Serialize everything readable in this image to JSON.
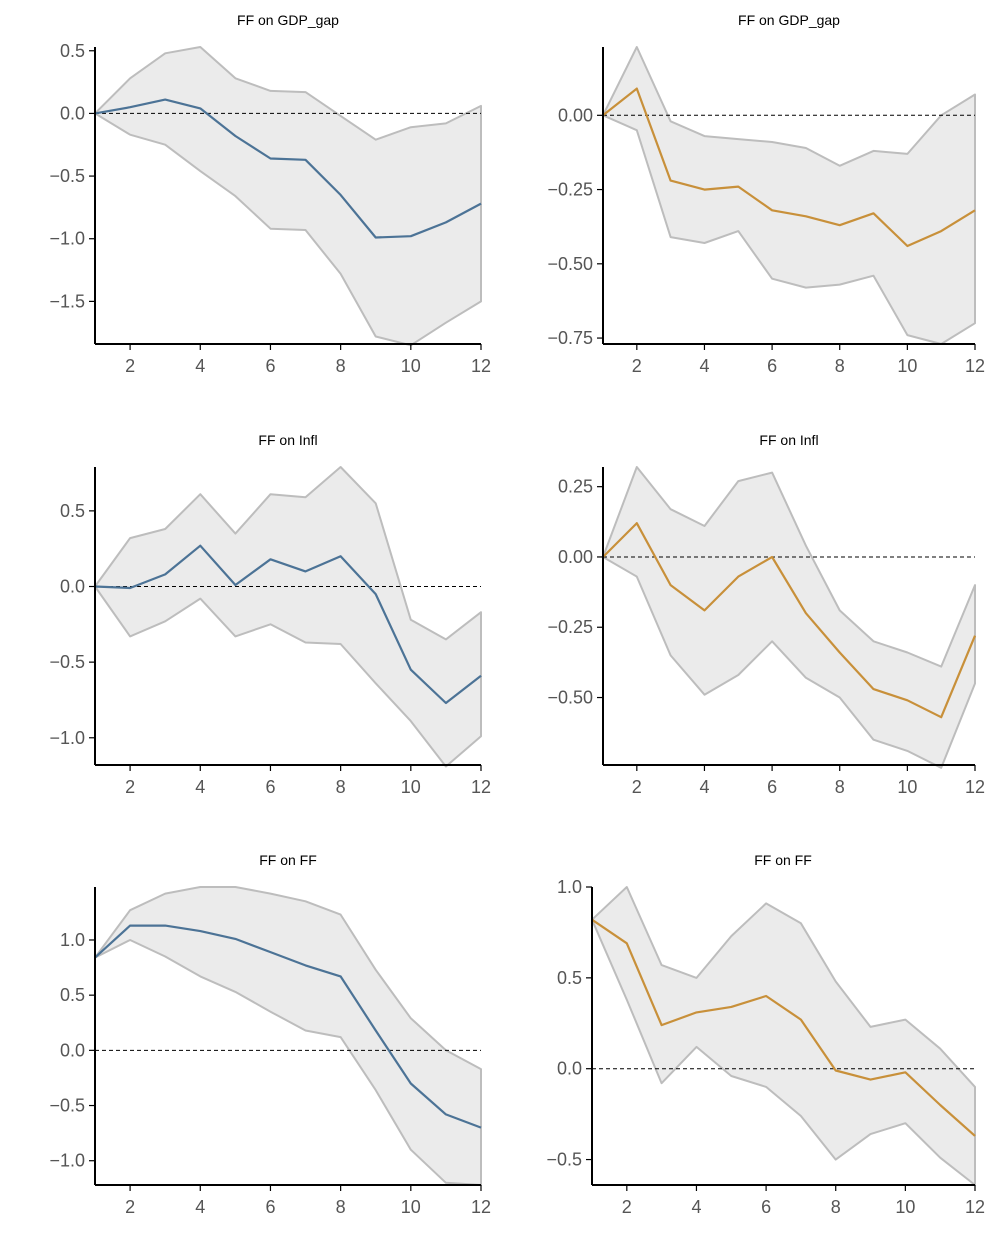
{
  "figure": {
    "background": "#ffffff"
  },
  "colors": {
    "left_series": "#4c7396",
    "right_series": "#c8903a",
    "band_fill": "#ebebeb",
    "band_edge": "#bdbdbd"
  },
  "chart_data": [
    {
      "type": "line",
      "title": "FF on GDP_gap",
      "x": [
        1,
        2,
        3,
        4,
        5,
        6,
        7,
        8,
        9,
        10,
        11,
        12
      ],
      "xticks": [
        2,
        4,
        6,
        8,
        10,
        12
      ],
      "xlim": [
        1,
        12
      ],
      "ylim": [
        -1.84,
        0.53
      ],
      "yticks": [
        0.5,
        0.0,
        -0.5,
        -1.0,
        -1.5
      ],
      "yticklabels": [
        "0.5",
        "0.0",
        "−0.5",
        "−1.0",
        "−1.5"
      ],
      "zero_line": true,
      "series": [
        {
          "role": "lower",
          "values": [
            0.0,
            -0.17,
            -0.25,
            -0.46,
            -0.66,
            -0.92,
            -0.93,
            -1.28,
            -1.78,
            -1.85,
            -1.67,
            -1.5
          ]
        },
        {
          "role": "upper",
          "values": [
            0.0,
            0.28,
            0.48,
            0.53,
            0.28,
            0.18,
            0.17,
            -0.02,
            -0.21,
            -0.11,
            -0.08,
            0.06
          ]
        },
        {
          "role": "point",
          "color": "#4c7396",
          "values": [
            0.0,
            0.05,
            0.11,
            0.04,
            -0.18,
            -0.36,
            -0.37,
            -0.65,
            -0.99,
            -0.98,
            -0.87,
            -0.72
          ]
        }
      ]
    },
    {
      "type": "line",
      "title": "FF on GDP_gap",
      "x": [
        1,
        2,
        3,
        4,
        5,
        6,
        7,
        8,
        9,
        10,
        11,
        12
      ],
      "xticks": [
        2,
        4,
        6,
        8,
        10,
        12
      ],
      "xlim": [
        1,
        12
      ],
      "ylim": [
        -0.77,
        0.23
      ],
      "yticks": [
        0.0,
        -0.25,
        -0.5,
        -0.75
      ],
      "yticklabels": [
        "0.00",
        "−0.25",
        "−0.50",
        "−0.75"
      ],
      "zero_line": true,
      "series": [
        {
          "role": "lower",
          "values": [
            0.0,
            -0.05,
            -0.41,
            -0.43,
            -0.39,
            -0.55,
            -0.58,
            -0.57,
            -0.54,
            -0.74,
            -0.77,
            -0.7
          ]
        },
        {
          "role": "upper",
          "values": [
            0.0,
            0.23,
            -0.02,
            -0.07,
            -0.08,
            -0.09,
            -0.11,
            -0.17,
            -0.12,
            -0.13,
            0.0,
            0.07
          ]
        },
        {
          "role": "point",
          "color": "#c8903a",
          "values": [
            0.0,
            0.09,
            -0.22,
            -0.25,
            -0.24,
            -0.32,
            -0.34,
            -0.37,
            -0.33,
            -0.44,
            -0.39,
            -0.32
          ]
        }
      ]
    },
    {
      "type": "line",
      "title": "FF on Infl",
      "x": [
        1,
        2,
        3,
        4,
        5,
        6,
        7,
        8,
        9,
        10,
        11,
        12
      ],
      "xticks": [
        2,
        4,
        6,
        8,
        10,
        12
      ],
      "xlim": [
        1,
        12
      ],
      "ylim": [
        -1.18,
        0.79
      ],
      "yticks": [
        0.5,
        0.0,
        -0.5,
        -1.0
      ],
      "yticklabels": [
        "0.5",
        "0.0",
        "−0.5",
        "−1.0"
      ],
      "zero_line": true,
      "series": [
        {
          "role": "lower",
          "values": [
            0.0,
            -0.33,
            -0.23,
            -0.08,
            -0.33,
            -0.25,
            -0.37,
            -0.38,
            -0.64,
            -0.89,
            -1.19,
            -0.99
          ]
        },
        {
          "role": "upper",
          "values": [
            0.0,
            0.32,
            0.38,
            0.61,
            0.35,
            0.61,
            0.59,
            0.79,
            0.55,
            -0.22,
            -0.35,
            -0.17
          ]
        },
        {
          "role": "point",
          "color": "#4c7396",
          "values": [
            0.0,
            -0.01,
            0.08,
            0.27,
            0.01,
            0.18,
            0.1,
            0.2,
            -0.05,
            -0.55,
            -0.77,
            -0.59
          ]
        }
      ]
    },
    {
      "type": "line",
      "title": "FF on Infl",
      "x": [
        1,
        2,
        3,
        4,
        5,
        6,
        7,
        8,
        9,
        10,
        11,
        12
      ],
      "xticks": [
        2,
        4,
        6,
        8,
        10,
        12
      ],
      "xlim": [
        1,
        12
      ],
      "ylim": [
        -0.74,
        0.32
      ],
      "yticks": [
        0.25,
        0.0,
        -0.25,
        -0.5
      ],
      "yticklabels": [
        "0.25",
        "0.00",
        "−0.25",
        "−0.50"
      ],
      "zero_line": true,
      "series": [
        {
          "role": "lower",
          "values": [
            0.0,
            -0.07,
            -0.35,
            -0.49,
            -0.42,
            -0.3,
            -0.43,
            -0.5,
            -0.65,
            -0.69,
            -0.75,
            -0.45
          ]
        },
        {
          "role": "upper",
          "values": [
            0.0,
            0.32,
            0.17,
            0.11,
            0.27,
            0.3,
            0.04,
            -0.19,
            -0.3,
            -0.34,
            -0.39,
            -0.1
          ]
        },
        {
          "role": "point",
          "color": "#c8903a",
          "values": [
            0.0,
            0.12,
            -0.1,
            -0.19,
            -0.07,
            0.0,
            -0.2,
            -0.34,
            -0.47,
            -0.51,
            -0.57,
            -0.28
          ]
        }
      ]
    },
    {
      "type": "line",
      "title": "FF on FF",
      "x": [
        1,
        2,
        3,
        4,
        5,
        6,
        7,
        8,
        9,
        10,
        11,
        12
      ],
      "xticks": [
        2,
        4,
        6,
        8,
        10,
        12
      ],
      "xlim": [
        1,
        12
      ],
      "ylim": [
        -1.22,
        1.48
      ],
      "yticks": [
        1.0,
        0.5,
        0.0,
        -0.5,
        -1.0
      ],
      "yticklabels": [
        "1.0",
        "0.5",
        "0.0",
        "−0.5",
        "−1.0"
      ],
      "zero_line": true,
      "series": [
        {
          "role": "lower",
          "values": [
            0.84,
            1.0,
            0.85,
            0.67,
            0.53,
            0.35,
            0.18,
            0.12,
            -0.36,
            -0.9,
            -1.2,
            -1.22
          ]
        },
        {
          "role": "upper",
          "values": [
            0.84,
            1.27,
            1.42,
            1.48,
            1.48,
            1.42,
            1.35,
            1.23,
            0.73,
            0.29,
            0.0,
            -0.17
          ]
        },
        {
          "role": "point",
          "color": "#4c7396",
          "values": [
            0.84,
            1.13,
            1.13,
            1.08,
            1.01,
            0.89,
            0.77,
            0.67,
            0.18,
            -0.3,
            -0.58,
            -0.7
          ]
        }
      ]
    },
    {
      "type": "line",
      "title": "FF on FF",
      "x": [
        1,
        2,
        3,
        4,
        5,
        6,
        7,
        8,
        9,
        10,
        11,
        12
      ],
      "xticks": [
        2,
        4,
        6,
        8,
        10,
        12
      ],
      "xlim": [
        1,
        12
      ],
      "ylim": [
        -0.64,
        1.0
      ],
      "yticks": [
        1.0,
        0.5,
        0.0,
        -0.5
      ],
      "yticklabels": [
        "1.0",
        "0.5",
        "0.0",
        "−0.5"
      ],
      "zero_line": true,
      "series": [
        {
          "role": "lower",
          "values": [
            0.82,
            0.38,
            -0.08,
            0.12,
            -0.04,
            -0.1,
            -0.26,
            -0.5,
            -0.36,
            -0.3,
            -0.49,
            -0.64
          ]
        },
        {
          "role": "upper",
          "values": [
            0.82,
            1.0,
            0.57,
            0.5,
            0.73,
            0.91,
            0.8,
            0.48,
            0.23,
            0.27,
            0.11,
            -0.1
          ]
        },
        {
          "role": "point",
          "color": "#c8903a",
          "values": [
            0.82,
            0.69,
            0.24,
            0.31,
            0.34,
            0.4,
            0.27,
            -0.01,
            -0.06,
            -0.02,
            -0.2,
            -0.37
          ]
        }
      ]
    }
  ]
}
